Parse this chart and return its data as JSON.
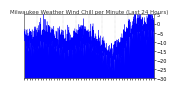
{
  "title": "Milwaukee Weather Wind Chill per Minute (Last 24 Hours)",
  "background_color": "#ffffff",
  "plot_bg_color": "#ffffff",
  "line_color": "#0000ff",
  "fill_color": "#0000ff",
  "grid_color": "#bbbbbb",
  "ylim": [
    -30,
    5
  ],
  "yticks": [
    5,
    0,
    -5,
    -10,
    -15,
    -20,
    -25,
    -30
  ],
  "num_points": 1440,
  "seed": 42,
  "title_fontsize": 4,
  "tick_fontsize": 3.5
}
